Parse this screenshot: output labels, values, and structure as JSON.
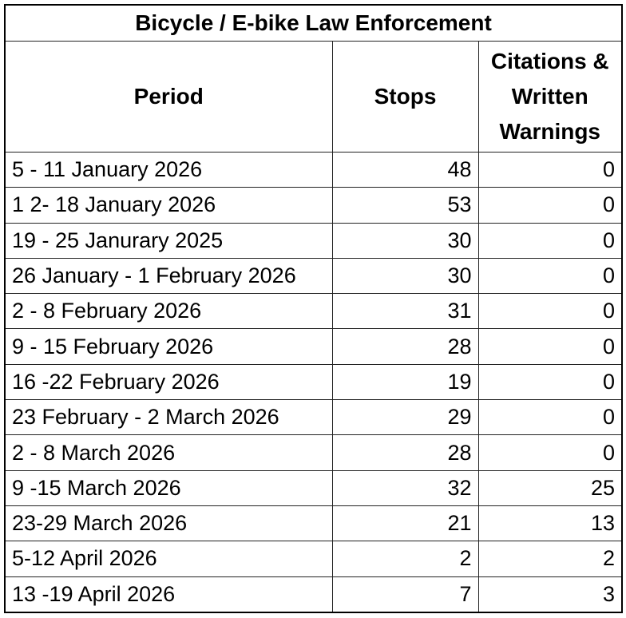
{
  "table": {
    "title": "Bicycle / E-bike Law Enforcement",
    "headers": [
      "Period",
      "Stops",
      "Citations & Written Warnings"
    ],
    "rows": [
      [
        "5 - 11 January 2026",
        48,
        0
      ],
      [
        "1 2- 18 January 2026",
        53,
        0
      ],
      [
        "19 - 25 Janurary 2025",
        30,
        0
      ],
      [
        "26 January - 1 February 2026",
        30,
        0
      ],
      [
        "2 - 8 February 2026",
        31,
        0
      ],
      [
        "9 - 15 February 2026",
        28,
        0
      ],
      [
        "16 -22 February 2026",
        19,
        0
      ],
      [
        "23 February - 2 March 2026",
        29,
        0
      ],
      [
        "2 - 8 March 2026",
        28,
        0
      ],
      [
        "9 -15 March 2026",
        32,
        25
      ],
      [
        "23-29 March 2026",
        21,
        13
      ],
      [
        "5-12 April 2026",
        2,
        2
      ],
      [
        "13 -19 April 2026",
        7,
        3
      ]
    ]
  }
}
